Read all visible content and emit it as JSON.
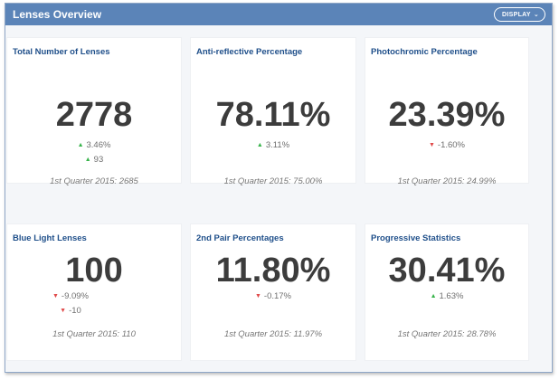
{
  "header": {
    "title": "Lenses Overview",
    "display_label": "DISPLAY",
    "display_chevron": "⌄"
  },
  "cards": [
    {
      "title": "Total Number of Lenses",
      "value": "2778",
      "deltas": [
        {
          "direction": "up",
          "text": "3.46%"
        },
        {
          "direction": "up",
          "text": "93"
        }
      ],
      "footer": "1st Quarter 2015: 2685"
    },
    {
      "title": "Anti-reflective Percentage",
      "value": "78.11%",
      "deltas": [
        {
          "direction": "up",
          "text": "3.11%"
        }
      ],
      "footer": "1st Quarter 2015: 75.00%"
    },
    {
      "title": "Photochromic Percentage",
      "value": "23.39%",
      "deltas": [
        {
          "direction": "down",
          "text": "-1.60%"
        }
      ],
      "footer": "1st Quarter 2015: 24.99%"
    },
    {
      "title": "Blue Light Lenses",
      "value": "100",
      "deltas": [
        {
          "direction": "down",
          "text": "-9.09%"
        },
        {
          "direction": "down",
          "text": "-10"
        }
      ],
      "footer": "1st Quarter 2015: 110"
    },
    {
      "title": "2nd Pair Percentages",
      "value": "11.80%",
      "deltas": [
        {
          "direction": "down",
          "text": "-0.17%"
        }
      ],
      "footer": "1st Quarter 2015: 11.97%"
    },
    {
      "title": "Progressive Statistics",
      "value": "30.41%",
      "deltas": [
        {
          "direction": "up",
          "text": "1.63%"
        }
      ],
      "footer": "1st Quarter 2015: 28.78%"
    }
  ],
  "colors": {
    "header_bg": "#5b84b8",
    "title_blue": "#1f4f8a",
    "up": "#37b34a",
    "down": "#e04b4b"
  },
  "icons": {
    "up": "arrow-up-icon",
    "down": "arrow-down-icon"
  }
}
